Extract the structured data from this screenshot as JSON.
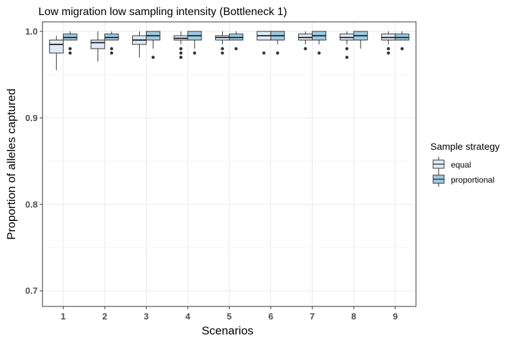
{
  "chart_data": {
    "type": "boxplot",
    "title": "Low migration low sampling intensity (Bottleneck 1)",
    "xlabel": "Scenarios",
    "ylabel": "Proportion of alleles captured",
    "categories": [
      "1",
      "2",
      "3",
      "4",
      "5",
      "6",
      "7",
      "8",
      "9"
    ],
    "ylim": [
      0.682,
      1.011
    ],
    "yticks": [
      0.7,
      0.8,
      0.9,
      1.0
    ],
    "ytick_labels": [
      "0.7",
      "0.8",
      "0.9",
      "1.0"
    ],
    "grid": true,
    "legend": {
      "title": "Sample strategy",
      "position": "right"
    },
    "series": [
      {
        "name": "equal",
        "color": "#deebf7",
        "boxes": [
          {
            "min": 0.955,
            "q1": 0.975,
            "median": 0.985,
            "q3": 0.99,
            "max": 0.995,
            "outliers": []
          },
          {
            "min": 0.965,
            "q1": 0.98,
            "median": 0.987,
            "q3": 0.99,
            "max": 1.0,
            "outliers": []
          },
          {
            "min": 0.97,
            "q1": 0.985,
            "median": 0.99,
            "q3": 0.995,
            "max": 1.0,
            "outliers": []
          },
          {
            "min": 0.985,
            "q1": 0.99,
            "median": 0.992,
            "q3": 0.995,
            "max": 1.0,
            "outliers": [
              0.98,
              0.975,
              0.97
            ]
          },
          {
            "min": 0.985,
            "q1": 0.99,
            "median": 0.993,
            "q3": 0.995,
            "max": 1.0,
            "outliers": [
              0.98,
              0.975
            ]
          },
          {
            "min": 0.99,
            "q1": 0.99,
            "median": 0.995,
            "q3": 1.0,
            "max": 1.0,
            "outliers": [
              0.975
            ]
          },
          {
            "min": 0.985,
            "q1": 0.99,
            "median": 0.993,
            "q3": 0.997,
            "max": 1.0,
            "outliers": [
              0.98
            ]
          },
          {
            "min": 0.985,
            "q1": 0.99,
            "median": 0.993,
            "q3": 0.997,
            "max": 1.0,
            "outliers": [
              0.98,
              0.97
            ]
          },
          {
            "min": 0.985,
            "q1": 0.99,
            "median": 0.993,
            "q3": 0.997,
            "max": 1.0,
            "outliers": [
              0.98,
              0.975
            ]
          }
        ]
      },
      {
        "name": "proportional",
        "color": "#9ecae1",
        "boxes": [
          {
            "min": 0.99,
            "q1": 0.99,
            "median": 0.993,
            "q3": 0.997,
            "max": 1.0,
            "outliers": [
              0.98,
              0.975
            ]
          },
          {
            "min": 0.99,
            "q1": 0.99,
            "median": 0.993,
            "q3": 0.997,
            "max": 1.0,
            "outliers": [
              0.98,
              0.975
            ]
          },
          {
            "min": 0.98,
            "q1": 0.99,
            "median": 0.995,
            "q3": 1.0,
            "max": 1.0,
            "outliers": [
              0.97
            ]
          },
          {
            "min": 0.98,
            "q1": 0.99,
            "median": 0.995,
            "q3": 1.0,
            "max": 1.0,
            "outliers": [
              0.975
            ]
          },
          {
            "min": 0.99,
            "q1": 0.99,
            "median": 0.993,
            "q3": 0.997,
            "max": 1.0,
            "outliers": [
              0.98
            ]
          },
          {
            "min": 0.985,
            "q1": 0.99,
            "median": 0.995,
            "q3": 1.0,
            "max": 1.0,
            "outliers": [
              0.975
            ]
          },
          {
            "min": 0.985,
            "q1": 0.99,
            "median": 0.995,
            "q3": 1.0,
            "max": 1.0,
            "outliers": [
              0.975
            ]
          },
          {
            "min": 0.98,
            "q1": 0.99,
            "median": 0.995,
            "q3": 1.0,
            "max": 1.0,
            "outliers": []
          },
          {
            "min": 0.99,
            "q1": 0.99,
            "median": 0.993,
            "q3": 0.997,
            "max": 1.0,
            "outliers": [
              0.98
            ]
          }
        ]
      }
    ]
  }
}
